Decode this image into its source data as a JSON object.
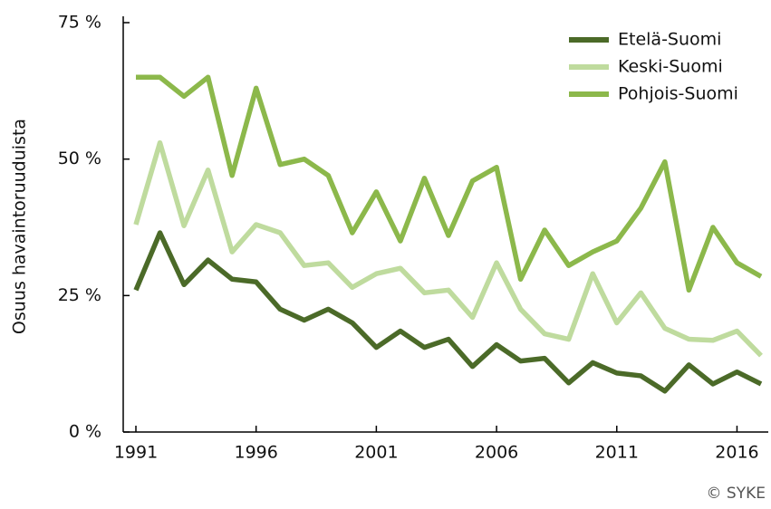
{
  "chart_data": {
    "type": "line",
    "y_label": "Osuus havaintoruuduista",
    "credit": "© SYKE",
    "x": [
      1991,
      1992,
      1993,
      1994,
      1995,
      1996,
      1997,
      1998,
      1999,
      2000,
      2001,
      2002,
      2003,
      2004,
      2005,
      2006,
      2007,
      2008,
      2009,
      2010,
      2011,
      2012,
      2013,
      2014,
      2015,
      2016,
      2017
    ],
    "xlim": [
      1991,
      2017
    ],
    "xticks": [
      1991,
      1996,
      2001,
      2006,
      2011,
      2016
    ],
    "ylim": [
      0,
      75
    ],
    "yticks": [
      {
        "value": 0,
        "label": "0 %"
      },
      {
        "value": 25,
        "label": "25 %"
      },
      {
        "value": 50,
        "label": "50 %"
      },
      {
        "value": 75,
        "label": "75 %"
      }
    ],
    "legend": "upper right",
    "grid": false,
    "series": [
      {
        "name": "Etelä-Suomi",
        "color": "#4b6a28",
        "values": [
          26,
          36.5,
          27,
          31.5,
          28,
          27.5,
          22.5,
          20.5,
          22.5,
          20,
          15.5,
          18.5,
          15.5,
          17,
          12,
          16,
          13,
          13.5,
          9,
          12.7,
          10.8,
          10.3,
          7.5,
          12.3,
          8.8,
          11,
          8.8
        ]
      },
      {
        "name": "Keski-Suomi",
        "color": "#bfdb9e",
        "values": [
          38,
          53,
          37.8,
          48,
          33,
          38,
          36.5,
          30.5,
          31,
          26.5,
          29,
          30,
          25.5,
          26,
          21,
          31,
          22.5,
          18,
          17,
          29,
          20,
          25.5,
          19,
          17,
          16.8,
          18.5,
          14
        ]
      },
      {
        "name": "Pohjois-Suomi",
        "color": "#8cb84b",
        "values": [
          65,
          65,
          61.5,
          65,
          47,
          63,
          49,
          50,
          47,
          36.5,
          44,
          35,
          46.5,
          36,
          46,
          48.5,
          28,
          37,
          30.5,
          33,
          35,
          41,
          49.5,
          26,
          37.5,
          31,
          28.5
        ]
      }
    ]
  }
}
